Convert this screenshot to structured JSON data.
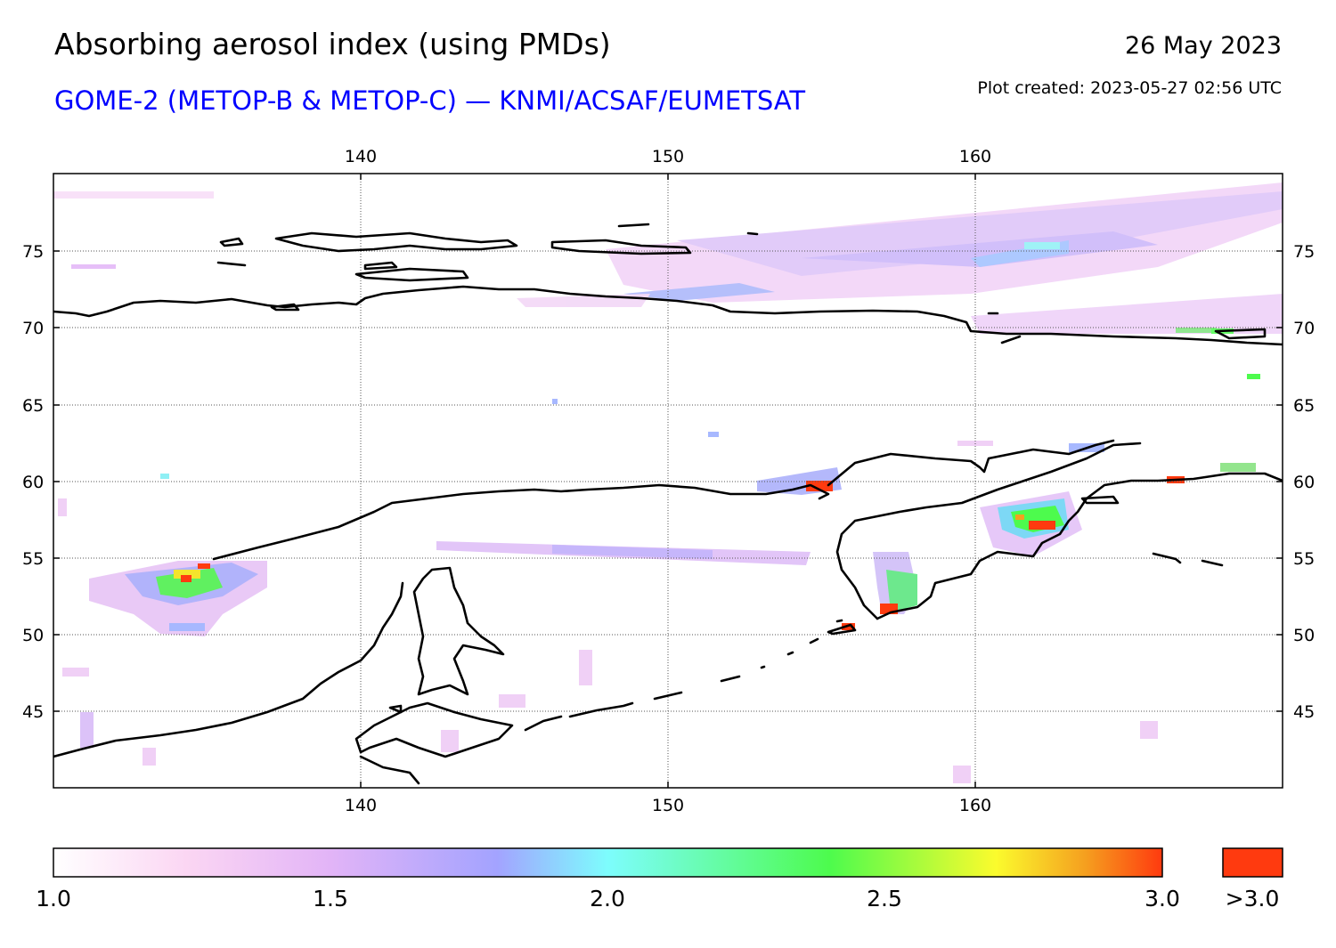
{
  "header": {
    "title": "Absorbing aerosol index (using PMDs)",
    "subtitle": "GOME-2 (METOP-B & METOP-C) — KNMI/ACSAF/EUMETSAT",
    "date": "26 May 2023",
    "plot_created": "Plot created: 2023-05-27 02:56 UTC"
  },
  "map": {
    "lon_range": [
      130,
      170
    ],
    "lat_range": [
      40,
      80
    ],
    "lon_ticks": [
      "140",
      "150",
      "160"
    ],
    "lat_ticks": [
      "75",
      "70",
      "65",
      "60",
      "55",
      "50",
      "45"
    ],
    "coastline_color": "#000000",
    "gridlines": "dotted"
  },
  "colorbar": {
    "labels": [
      "1.0",
      "1.5",
      "2.0",
      "2.5",
      "3.0"
    ],
    "overflow_label": ">3.0",
    "range": [
      1.0,
      3.0
    ],
    "stops": [
      "#ffffff",
      "#fbd6f3",
      "#e2b4f7",
      "#a3a3ff",
      "#7dfdfd",
      "#4dfb4d",
      "#fbfb2d",
      "#f5a01f",
      "#ff3a0f"
    ],
    "overflow_color": "#ff3a0f"
  }
}
